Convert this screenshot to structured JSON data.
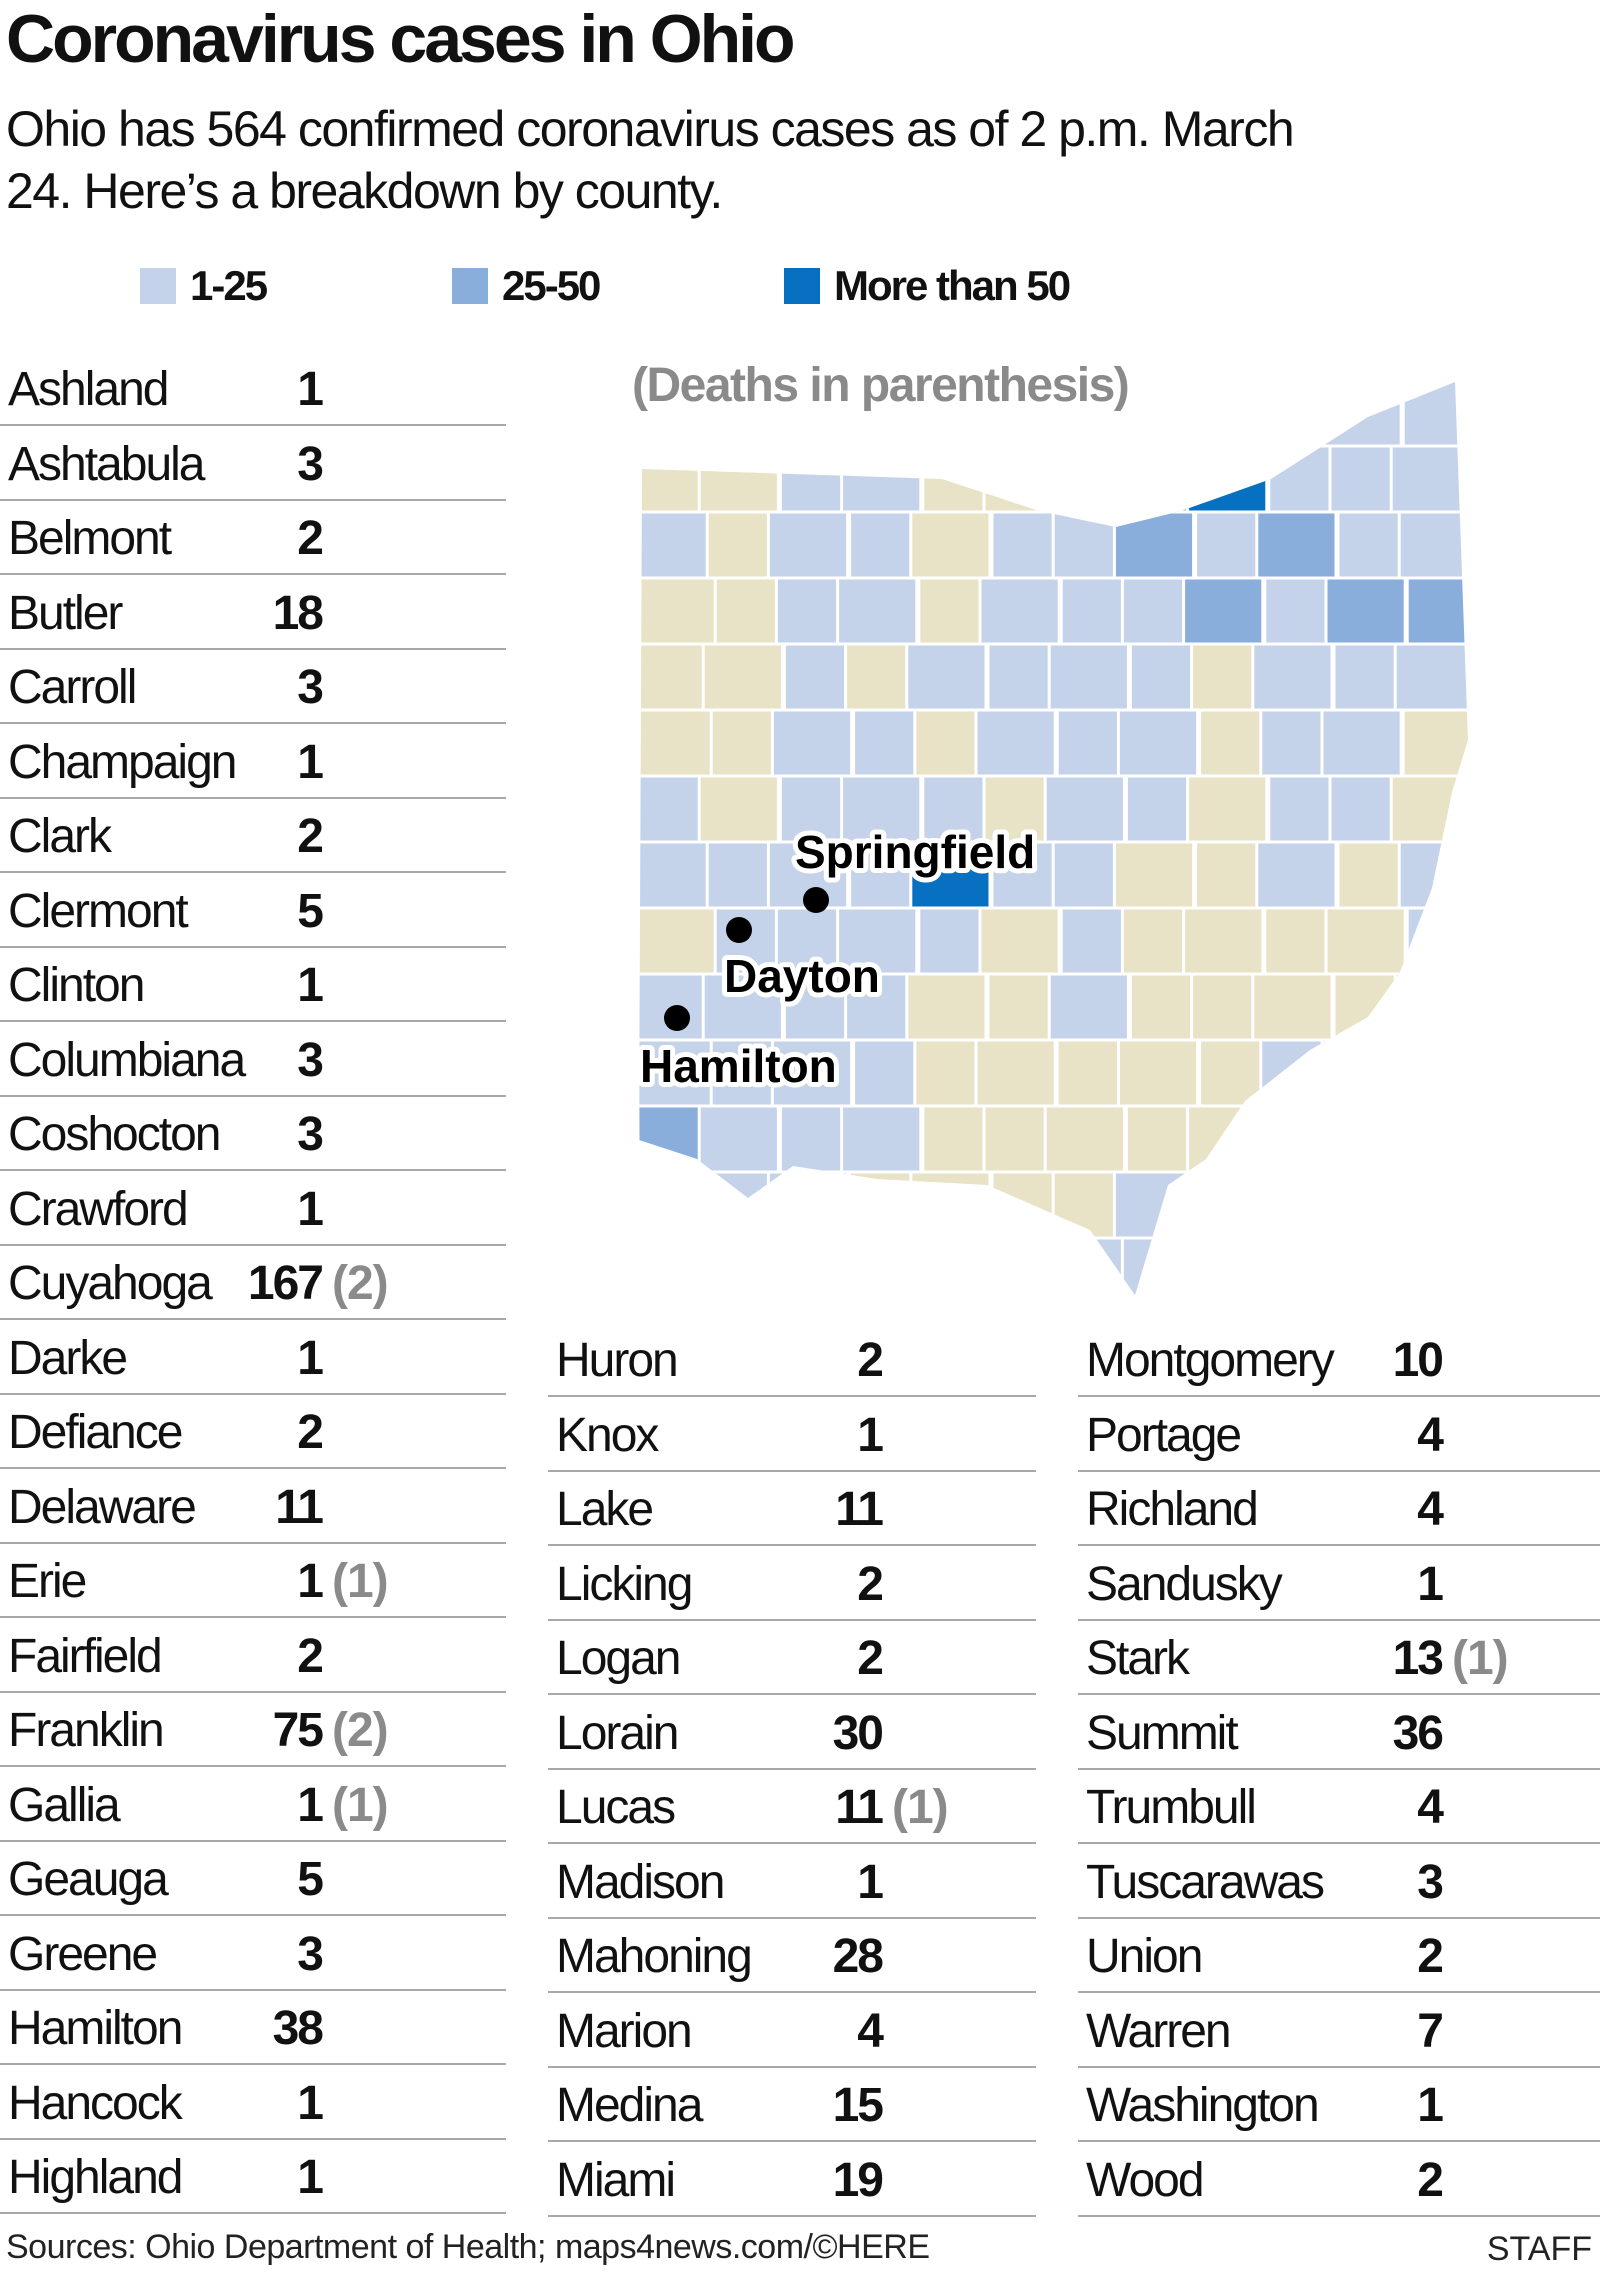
{
  "header": {
    "title": "Coronavirus cases in Ohio",
    "subtitle": "Ohio has 564 confirmed coronavirus cases as of 2 p.m. March 24. Here’s a breakdown by county."
  },
  "legend": [
    {
      "label": "1-25",
      "color": "#c5d3ea"
    },
    {
      "label": "25-50",
      "color": "#8aaedb"
    },
    {
      "label": "More than 50",
      "color": "#0870c0"
    }
  ],
  "map": {
    "note": "(Deaths in parenthesis)",
    "no_cases_color": "#e8e3c6",
    "cities": [
      "Springfield",
      "Dayton",
      "Hamilton"
    ]
  },
  "counties": [
    [
      {
        "name": "Ashland",
        "cases": "1",
        "deaths": ""
      },
      {
        "name": "Ashtabula",
        "cases": "3",
        "deaths": ""
      },
      {
        "name": "Belmont",
        "cases": "2",
        "deaths": ""
      },
      {
        "name": "Butler",
        "cases": "18",
        "deaths": ""
      },
      {
        "name": "Carroll",
        "cases": "3",
        "deaths": ""
      },
      {
        "name": "Champaign",
        "cases": "1",
        "deaths": ""
      },
      {
        "name": "Clark",
        "cases": "2",
        "deaths": ""
      },
      {
        "name": "Clermont",
        "cases": "5",
        "deaths": ""
      },
      {
        "name": "Clinton",
        "cases": "1",
        "deaths": ""
      },
      {
        "name": "Columbiana",
        "cases": "3",
        "deaths": ""
      },
      {
        "name": "Coshocton",
        "cases": "3",
        "deaths": ""
      },
      {
        "name": "Crawford",
        "cases": "1",
        "deaths": ""
      },
      {
        "name": "Cuyahoga",
        "cases": "167",
        "deaths": "(2)"
      },
      {
        "name": "Darke",
        "cases": "1",
        "deaths": ""
      },
      {
        "name": "Defiance",
        "cases": "2",
        "deaths": ""
      },
      {
        "name": "Delaware",
        "cases": "11",
        "deaths": ""
      },
      {
        "name": "Erie",
        "cases": "1",
        "deaths": "(1)"
      },
      {
        "name": "Fairfield",
        "cases": "2",
        "deaths": ""
      },
      {
        "name": "Franklin",
        "cases": "75",
        "deaths": "(2)"
      },
      {
        "name": "Gallia",
        "cases": "1",
        "deaths": "(1)"
      },
      {
        "name": "Geauga",
        "cases": "5",
        "deaths": ""
      },
      {
        "name": "Greene",
        "cases": "3",
        "deaths": ""
      },
      {
        "name": "Hamilton",
        "cases": "38",
        "deaths": ""
      },
      {
        "name": "Hancock",
        "cases": "1",
        "deaths": ""
      },
      {
        "name": "Highland",
        "cases": "1",
        "deaths": ""
      }
    ],
    [
      {
        "name": "Huron",
        "cases": "2",
        "deaths": ""
      },
      {
        "name": "Knox",
        "cases": "1",
        "deaths": ""
      },
      {
        "name": "Lake",
        "cases": "11",
        "deaths": ""
      },
      {
        "name": "Licking",
        "cases": "2",
        "deaths": ""
      },
      {
        "name": "Logan",
        "cases": "2",
        "deaths": ""
      },
      {
        "name": "Lorain",
        "cases": "30",
        "deaths": ""
      },
      {
        "name": "Lucas",
        "cases": "11",
        "deaths": "(1)"
      },
      {
        "name": "Madison",
        "cases": "1",
        "deaths": ""
      },
      {
        "name": "Mahoning",
        "cases": "28",
        "deaths": ""
      },
      {
        "name": "Marion",
        "cases": "4",
        "deaths": ""
      },
      {
        "name": "Medina",
        "cases": "15",
        "deaths": ""
      },
      {
        "name": "Miami",
        "cases": "19",
        "deaths": ""
      }
    ],
    [
      {
        "name": "Montgomery",
        "cases": "10",
        "deaths": ""
      },
      {
        "name": "Portage",
        "cases": "4",
        "deaths": ""
      },
      {
        "name": "Richland",
        "cases": "4",
        "deaths": ""
      },
      {
        "name": "Sandusky",
        "cases": "1",
        "deaths": ""
      },
      {
        "name": "Stark",
        "cases": "13",
        "deaths": "(1)"
      },
      {
        "name": "Summit",
        "cases": "36",
        "deaths": ""
      },
      {
        "name": "Trumbull",
        "cases": "4",
        "deaths": ""
      },
      {
        "name": "Tuscarawas",
        "cases": "3",
        "deaths": ""
      },
      {
        "name": "Union",
        "cases": "2",
        "deaths": ""
      },
      {
        "name": "Warren",
        "cases": "7",
        "deaths": ""
      },
      {
        "name": "Washington",
        "cases": "1",
        "deaths": ""
      },
      {
        "name": "Wood",
        "cases": "2",
        "deaths": ""
      }
    ]
  ],
  "footer": {
    "sources": "Sources: Ohio Department of Health; maps4news.com/©HERE",
    "credit": "STAFF"
  }
}
